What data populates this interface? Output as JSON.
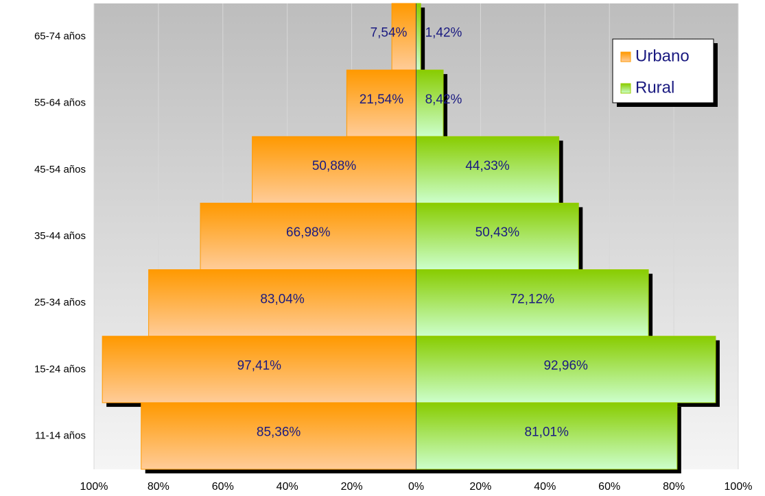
{
  "chart_data": {
    "type": "pyramid",
    "categories": [
      "65-74 años",
      "55-64 años",
      "45-54 años",
      "35-44 años",
      "25-34 años",
      "15-24 años",
      "11-14 años"
    ],
    "series": [
      {
        "name": "Urbano",
        "color": "#ff9900",
        "side": "left",
        "values": [
          7.54,
          21.54,
          50.88,
          66.98,
          83.04,
          97.41,
          85.36
        ],
        "value_labels": [
          "7,54%",
          "21,54%",
          "50,88%",
          "66,98%",
          "83,04%",
          "97,41%",
          "85,36%"
        ]
      },
      {
        "name": "Rural",
        "color": "#99cc00",
        "side": "right",
        "values": [
          1.42,
          8.42,
          44.33,
          50.43,
          72.12,
          92.96,
          81.01
        ],
        "value_labels": [
          "1,42%",
          "8,42%",
          "44,33%",
          "50,43%",
          "72,12%",
          "92,96%",
          "81,01%"
        ]
      }
    ],
    "xlim": [
      -100,
      100
    ],
    "xticks": [
      {
        "value": -100,
        "label": "100%"
      },
      {
        "value": -80,
        "label": "80%"
      },
      {
        "value": -60,
        "label": "60%"
      },
      {
        "value": -40,
        "label": "40%"
      },
      {
        "value": -20,
        "label": "20%"
      },
      {
        "value": 0,
        "label": "0%"
      },
      {
        "value": 20,
        "label": "20%"
      },
      {
        "value": 40,
        "label": "40%"
      },
      {
        "value": 60,
        "label": "60%"
      },
      {
        "value": 80,
        "label": "80%"
      },
      {
        "value": 100,
        "label": "100%"
      }
    ],
    "grid": true,
    "legend": "upper right"
  }
}
